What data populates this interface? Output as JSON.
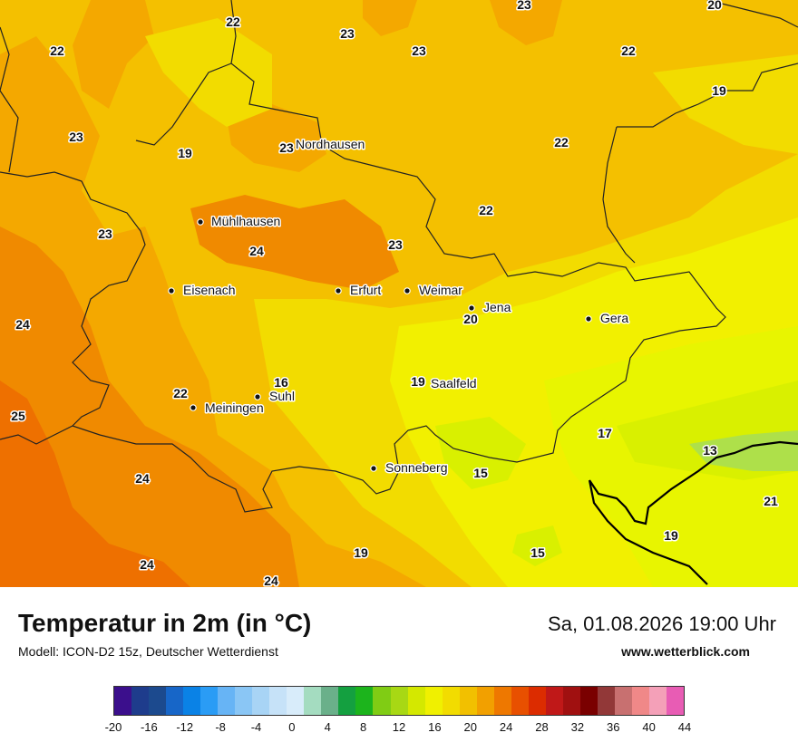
{
  "map": {
    "colors": {
      "c13": "#aee04a",
      "c15": "#d9f000",
      "c17": "#e8f500",
      "c19": "#f2f000",
      "c20": "#f2dc00",
      "c22": "#f4c000",
      "c23": "#f4a800",
      "c24": "#f08a00",
      "c25": "#ee7000"
    },
    "cities": [
      {
        "name": "Nordhausen"
      },
      {
        "name": "Mühlhausen"
      },
      {
        "name": "Eisenach"
      },
      {
        "name": "Erfurt"
      },
      {
        "name": "Weimar"
      },
      {
        "name": "Jena"
      },
      {
        "name": "Gera"
      },
      {
        "name": "Suhl"
      },
      {
        "name": "Meiningen"
      },
      {
        "name": "Saalfeld"
      },
      {
        "name": "Sonneberg"
      }
    ],
    "temps": [
      "22",
      "23",
      "23",
      "20",
      "22",
      "23",
      "22",
      "19",
      "23",
      "22",
      "23",
      "19",
      "22",
      "23",
      "24",
      "23",
      "24",
      "20",
      "25",
      "22",
      "16",
      "19",
      "24",
      "17",
      "13",
      "15",
      "21",
      "19",
      "15",
      "24",
      "19",
      "24"
    ]
  },
  "footer": {
    "title": "Temperatur in 2m (in °C)",
    "subtitle": "Modell: ICON-D2 15z, Deutscher Wetterdienst",
    "datetime": "Sa, 01.08.2026 19:00 Uhr",
    "website": "www.wetterblick.com"
  },
  "legend": {
    "colors": [
      "#3b0f8c",
      "#1e3c8c",
      "#1c4a8e",
      "#1766c8",
      "#0a82e6",
      "#2a9cf5",
      "#67b4f5",
      "#8ac6f5",
      "#a8d4f5",
      "#c6e2f8",
      "#d8ecfa",
      "#a4dcc0",
      "#6ab08a",
      "#14a040",
      "#1cb41c",
      "#80cc14",
      "#a8d814",
      "#d4e800",
      "#f0f000",
      "#f2dc00",
      "#f2c000",
      "#f2a000",
      "#ee7800",
      "#e85000",
      "#dc2c00",
      "#c01818",
      "#a01010",
      "#7a0000",
      "#923838",
      "#c87070",
      "#f08888",
      "#f4a0b8",
      "#e85cb4"
    ],
    "ticks": [
      "-20",
      "-16",
      "-12",
      "-8",
      "-4",
      "0",
      "4",
      "8",
      "12",
      "16",
      "20",
      "24",
      "28",
      "32",
      "36",
      "40",
      "44"
    ]
  }
}
